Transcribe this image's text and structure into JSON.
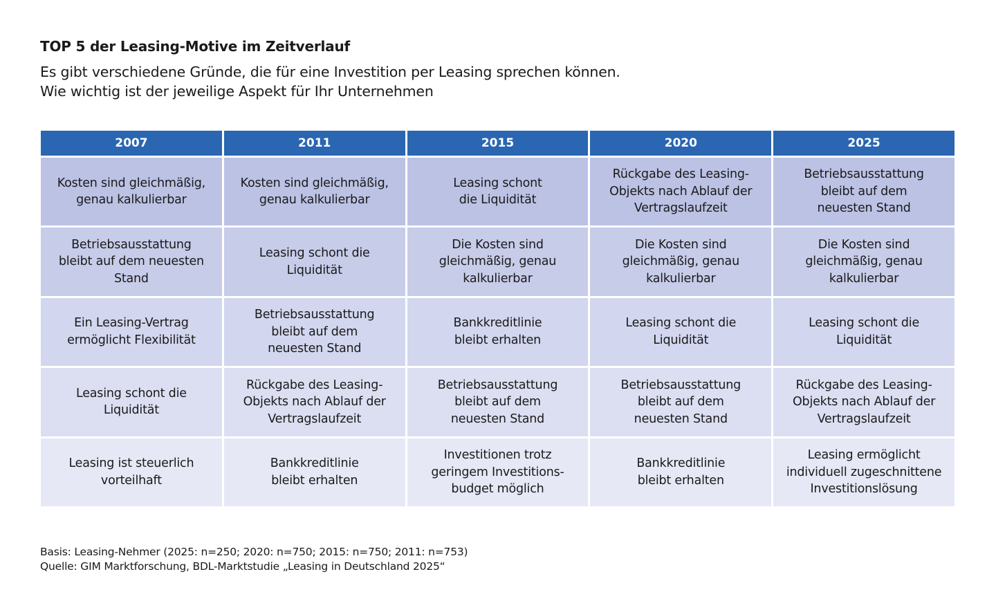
{
  "title": "TOP 5 der Leasing-Motive im Zeitverlauf",
  "subtitle": {
    "line1": "Es gibt verschiedene Gründe, die für eine Investition per Leasing sprechen können.",
    "line2": "Wie wichtig ist der jeweilige Aspekt für Ihr Unternehmen"
  },
  "table": {
    "headers": [
      "2007",
      "2011",
      "2015",
      "2020",
      "2025"
    ],
    "rows": [
      [
        "Kosten sind gleichmäßig,\ngenau kalkulierbar",
        "Kosten sind gleichmäßig,\ngenau kalkulierbar",
        "Leasing schont\ndie Liquidität",
        "Rückgabe des Leasing-\nObjekts nach Ablauf der\nVertragslaufzeit",
        "Betriebsausstattung\nbleibt auf dem\nneuesten Stand"
      ],
      [
        "Betriebsausstattung\nbleibt auf dem neuesten\nStand",
        "Leasing schont die\nLiquidität",
        "Die Kosten sind\ngleichmäßig, genau\nkalkulierbar",
        "Die Kosten sind\ngleichmäßig, genau\nkalkulierbar",
        "Die Kosten sind\ngleichmäßig, genau\nkalkulierbar"
      ],
      [
        "Ein Leasing-Vertrag\nermöglicht Flexibilität",
        "Betriebsausstattung\nbleibt auf dem\nneuesten Stand",
        "Bankkreditlinie\nbleibt erhalten",
        "Leasing schont die\nLiquidität",
        "Leasing schont die\nLiquidität"
      ],
      [
        "Leasing schont die\nLiquidität",
        "Rückgabe des Leasing-\nObjekts nach Ablauf der\nVertragslaufzeit",
        "Betriebsausstattung\nbleibt auf dem\nneuesten Stand",
        "Betriebsausstattung\nbleibt auf dem\nneuesten Stand",
        "Rückgabe des Leasing-\nObjekts nach Ablauf der\nVertragslaufzeit"
      ],
      [
        "Leasing ist steuerlich\nvorteilhaft",
        "Bankkreditlinie\nbleibt erhalten",
        "Investitionen trotz\ngeringem Investitions-\nbudget möglich",
        "Bankkreditlinie\nbleibt erhalten",
        "Leasing ermöglicht\nindividuell zugeschnittene\nInvestitionslösung"
      ]
    ]
  },
  "footer": {
    "basis": "Basis: Leasing-Nehmer (2025: n=250; 2020: n=750; 2015: n=750; 2011: n=753)",
    "source": "Quelle: GIM Marktforschung, BDL-Marktstudie „Leasing in Deutschland 2025“"
  },
  "colors": {
    "header_bg": "#2a66b1",
    "row_backgrounds": [
      "#bbc2e4",
      "#c7cce9",
      "#d2d6ee",
      "#dcdff2",
      "#e6e8f6"
    ]
  }
}
